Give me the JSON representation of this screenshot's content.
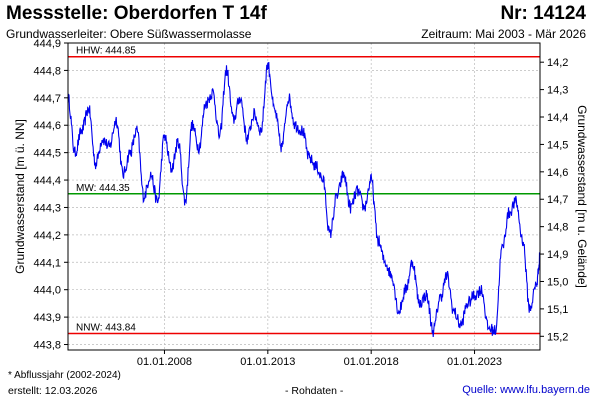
{
  "header": {
    "title": "Messstelle: Oberdorfen T 14f",
    "station_number": "Nr: 14124",
    "aquifer": "Grundwasserleiter:   Obere Süßwassermolasse",
    "period": "Zeitraum: Mai 2003 - Mär 2026"
  },
  "footer": {
    "footnote": "* Abflussjahr (2002-2024)",
    "created": "erstellt:   12.03.2026",
    "raw_data": "- Rohdaten -",
    "source": "Quelle: www.lfu.bayern.de"
  },
  "colors": {
    "series": "#0000ee",
    "hhw": "#ee0000",
    "nnw": "#ee0000",
    "mw": "#009900",
    "grid": "#bbbbbb",
    "source_link": "#0000cc"
  },
  "chart_data": {
    "type": "line",
    "ylabel": "Grundwasserstand [m ü. NN]",
    "ylabel_right": "Grundwasserstand [m u. Gelände]",
    "ylim": [
      443.78,
      444.9
    ],
    "ylim_right": [
      15.25,
      14.13
    ],
    "xlim": [
      "2003-05",
      "2026-03"
    ],
    "y_ticks": [
      "443,8",
      "443,9",
      "444,0",
      "444,1",
      "444,2",
      "444,3",
      "444,4",
      "444,5",
      "444,6",
      "444,7",
      "444,8",
      "444,9"
    ],
    "y_ticks_right": [
      "14,2",
      "14,3",
      "14,4",
      "14,5",
      "14,6",
      "14,7",
      "14,8",
      "14,9",
      "15,0",
      "15,1",
      "15,2"
    ],
    "x_ticks": [
      {
        "label": "01.01.2008",
        "date": "2008-01-01"
      },
      {
        "label": "01.01.2013",
        "date": "2013-01-01"
      },
      {
        "label": "01.01.2018",
        "date": "2018-01-01"
      },
      {
        "label": "01.01.2023",
        "date": "2023-01-01"
      }
    ],
    "grid": true,
    "reference_lines": [
      {
        "name": "HHW",
        "label": "HHW: 444.85",
        "value": 444.85
      },
      {
        "name": "MW",
        "label": "MW: 444.35",
        "value": 444.35
      },
      {
        "name": "NNW",
        "label": "NNW: 443.84",
        "value": 443.84
      }
    ],
    "series": [
      {
        "x": [
          "2003-05",
          "2003-09",
          "2004-01",
          "2004-05",
          "2004-09",
          "2005-01",
          "2005-05",
          "2005-09",
          "2006-01",
          "2006-05",
          "2006-09",
          "2007-01",
          "2007-05",
          "2007-09",
          "2008-01",
          "2008-05",
          "2008-09",
          "2009-01",
          "2009-05",
          "2009-09",
          "2010-01",
          "2010-05",
          "2010-09",
          "2011-01",
          "2011-05",
          "2011-09",
          "2012-01",
          "2012-05",
          "2012-09",
          "2013-01",
          "2013-05",
          "2013-09",
          "2014-01",
          "2014-05",
          "2014-09",
          "2015-01",
          "2015-05",
          "2015-09",
          "2016-01",
          "2016-05",
          "2016-09",
          "2017-01",
          "2017-05",
          "2017-09",
          "2018-01",
          "2018-05",
          "2018-09",
          "2019-01",
          "2019-05",
          "2019-09",
          "2020-01",
          "2020-05",
          "2020-09",
          "2021-01",
          "2021-05",
          "2021-09",
          "2022-01",
          "2022-05",
          "2022-09",
          "2023-01",
          "2023-05",
          "2023-09",
          "2024-01",
          "2024-05",
          "2024-09",
          "2025-01",
          "2025-05",
          "2025-09",
          "2026-01",
          "2026-03"
        ],
        "values": [
          444.7,
          444.5,
          444.58,
          444.66,
          444.46,
          444.55,
          444.52,
          444.62,
          444.42,
          444.5,
          444.58,
          444.34,
          444.42,
          444.32,
          444.56,
          444.44,
          444.54,
          444.32,
          444.6,
          444.52,
          444.68,
          444.72,
          444.56,
          444.8,
          444.62,
          444.7,
          444.55,
          444.64,
          444.58,
          444.82,
          444.65,
          444.52,
          444.7,
          444.6,
          444.58,
          444.48,
          444.45,
          444.4,
          444.2,
          444.34,
          444.42,
          444.3,
          444.36,
          444.3,
          444.4,
          444.18,
          444.1,
          444.05,
          443.92,
          444.0,
          444.1,
          443.95,
          443.98,
          443.85,
          443.97,
          444.05,
          443.92,
          443.87,
          443.95,
          443.98,
          444.0,
          443.86,
          443.85,
          444.15,
          444.28,
          444.32,
          444.18,
          443.93,
          444.02,
          444.12
        ]
      }
    ]
  }
}
